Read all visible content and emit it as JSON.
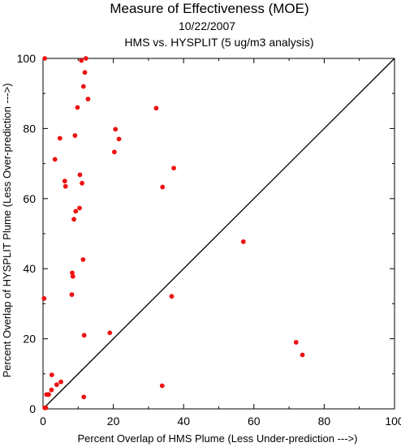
{
  "chart_data": {
    "type": "scatter",
    "title": "Measure of Effectiveness (MOE)",
    "subtitle_date": "10/22/2007",
    "subtitle_analysis": "HMS vs. HYSPLIT  (5 ug/m3 analysis)",
    "xlabel": "Percent Overlap of HMS Plume (Less Under-prediction --->)",
    "ylabel": "Percent Overlap of HYSPLIT Plume (Less Over-prediction --->)",
    "xlim": [
      0,
      100
    ],
    "ylim": [
      0,
      100
    ],
    "x_ticks": [
      0,
      20,
      40,
      60,
      80,
      100
    ],
    "y_ticks": [
      0,
      20,
      40,
      60,
      80,
      100
    ],
    "grid": false,
    "reference_line": "diagonal y = x",
    "point_color": "#ee1111",
    "series": [
      {
        "points": [
          [
            0.5,
            100
          ],
          [
            0.3,
            31.5
          ],
          [
            0.5,
            0.3
          ],
          [
            0.8,
            0.3
          ],
          [
            1.0,
            4.1
          ],
          [
            1.6,
            4.1
          ],
          [
            2.4,
            5.4
          ],
          [
            2.5,
            9.7
          ],
          [
            3.4,
            71.2
          ],
          [
            3.9,
            6.9
          ],
          [
            4.8,
            77.2
          ],
          [
            5.1,
            7.7
          ],
          [
            6.2,
            65.0
          ],
          [
            6.4,
            63.5
          ],
          [
            8.2,
            32.6
          ],
          [
            8.3,
            38.8
          ],
          [
            8.5,
            37.8
          ],
          [
            8.8,
            54.1
          ],
          [
            9.1,
            78.0
          ],
          [
            9.3,
            56.4
          ],
          [
            9.8,
            86.0
          ],
          [
            10.4,
            57.3
          ],
          [
            10.5,
            66.8
          ],
          [
            10.9,
            99.4
          ],
          [
            11.1,
            64.4
          ],
          [
            11.4,
            42.6
          ],
          [
            11.5,
            92.0
          ],
          [
            11.6,
            3.4
          ],
          [
            11.7,
            21.0
          ],
          [
            11.9,
            96.0
          ],
          [
            12.2,
            100
          ],
          [
            12.8,
            88.4
          ],
          [
            19.0,
            21.7
          ],
          [
            20.3,
            73.3
          ],
          [
            20.6,
            79.8
          ],
          [
            21.6,
            77.0
          ],
          [
            32.2,
            85.8
          ],
          [
            33.9,
            6.6
          ],
          [
            34.0,
            63.3
          ],
          [
            36.6,
            32.1
          ],
          [
            37.2,
            68.7
          ],
          [
            57.0,
            47.7
          ],
          [
            72.0,
            19.0
          ],
          [
            73.8,
            15.4
          ]
        ]
      }
    ]
  }
}
